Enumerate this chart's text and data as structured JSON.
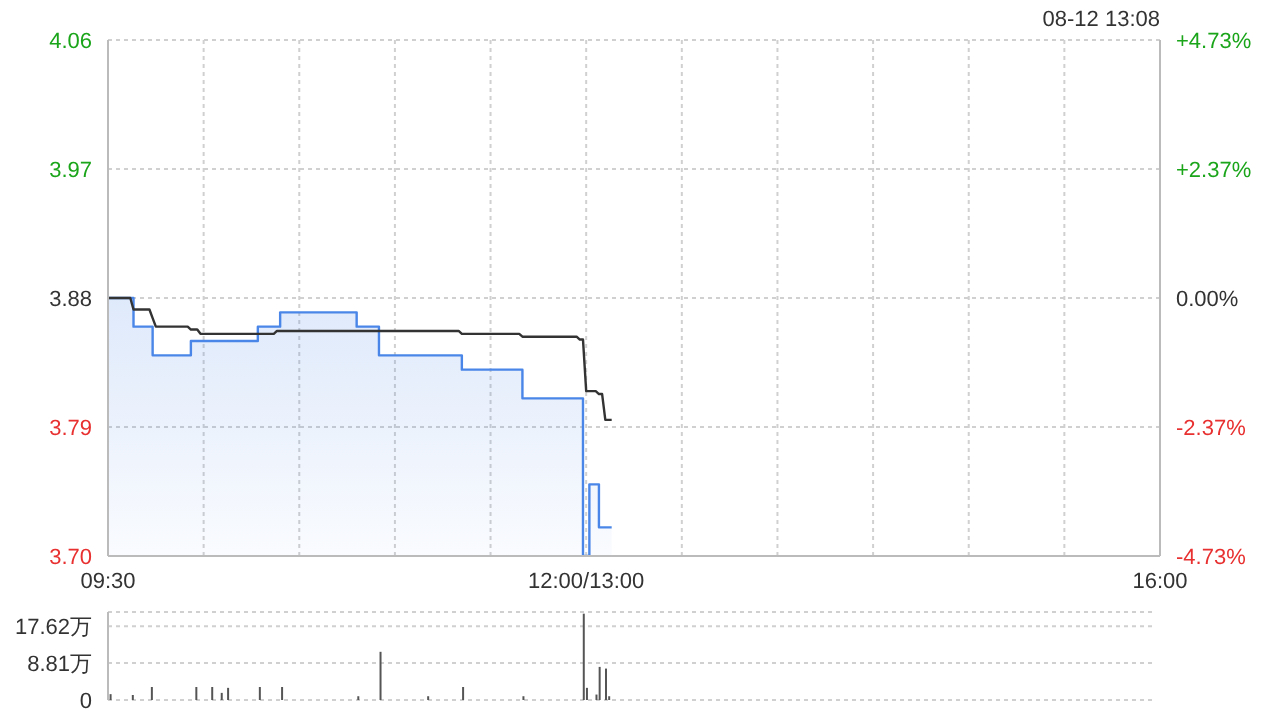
{
  "chart_data": [
    {
      "type": "line",
      "annotations": [
        "08-12 13:08"
      ],
      "categories": [
        "09:30",
        null,
        null,
        null,
        null,
        null,
        null,
        null,
        null,
        null,
        null,
        null,
        null,
        null,
        null,
        null,
        null,
        null,
        null,
        null,
        null,
        null,
        null,
        null,
        null,
        null,
        null,
        null,
        null,
        null,
        null,
        null,
        null,
        null,
        null,
        null,
        null,
        null,
        null,
        null,
        null,
        null,
        null,
        null,
        null,
        null,
        null,
        null,
        null,
        null,
        null,
        null,
        null,
        null,
        null,
        null,
        null,
        null,
        null,
        null,
        null,
        null,
        null,
        null,
        null,
        null,
        null,
        null,
        null,
        null,
        null,
        null,
        null,
        null,
        null,
        null,
        null,
        null,
        null,
        null,
        null,
        null,
        null,
        null,
        null,
        null,
        null,
        null,
        null,
        null,
        null,
        null,
        null,
        null,
        null,
        null,
        null,
        null,
        null,
        null,
        null,
        null,
        null,
        null,
        null,
        null,
        null,
        null,
        null,
        null,
        null,
        null,
        null,
        null,
        null,
        null,
        null,
        null,
        null,
        null,
        null,
        null,
        null,
        null,
        null,
        null,
        null,
        null,
        null,
        null,
        null,
        null,
        null,
        null,
        null,
        null,
        null,
        null,
        null,
        null,
        null,
        null,
        null,
        null,
        null,
        null,
        null,
        null,
        null,
        null,
        "12:00/13:00",
        null,
        null,
        null,
        null,
        null,
        null,
        null,
        null,
        null,
        null,
        null,
        null,
        null,
        null,
        null,
        null,
        null,
        null,
        null,
        null,
        null,
        null,
        null,
        null,
        null,
        null,
        null,
        null,
        null,
        null,
        null,
        null,
        null,
        null,
        null,
        null,
        null,
        null,
        null,
        null,
        null,
        null,
        null,
        null,
        null,
        null,
        null,
        null,
        null,
        null,
        null,
        null,
        null,
        null,
        null,
        null,
        null,
        null,
        null,
        null,
        null,
        null,
        null,
        null,
        null,
        null,
        null,
        null,
        null,
        null,
        null,
        null,
        null,
        null,
        null,
        null,
        null,
        null,
        null,
        null,
        null,
        null,
        null,
        null,
        null,
        null,
        null,
        null,
        null,
        null,
        null,
        null,
        null,
        null,
        null,
        null,
        null,
        null,
        null,
        null,
        null,
        null,
        null,
        null,
        null,
        null,
        null,
        null,
        null,
        null,
        null,
        null,
        null,
        null,
        null,
        null,
        null,
        null,
        null,
        null,
        null,
        null,
        null,
        null,
        null,
        null,
        null,
        null,
        null,
        null,
        null,
        null,
        null,
        null,
        null,
        null,
        null,
        null,
        null,
        null,
        null,
        null,
        null,
        null,
        null,
        null,
        null,
        null,
        null,
        null,
        null,
        null,
        null,
        null,
        null,
        null,
        null,
        null,
        null,
        null,
        null,
        null,
        null,
        null,
        null,
        null,
        null,
        null,
        null,
        null,
        null,
        null,
        null,
        null,
        null,
        null,
        null,
        null,
        null,
        "16:00"
      ],
      "ylim": [
        3.7,
        4.06
      ],
      "yticks": [
        {
          "value": 3.7,
          "label": "3.70"
        },
        3.79,
        3.88,
        3.97,
        4.06
      ],
      "y2lim": [
        -4.73,
        4.73
      ],
      "y2ticks": [
        {
          "value": -4.73,
          "label": "-4.73%"
        },
        {
          "value": -2.37,
          "label": "-2.37%"
        },
        {
          "value": 0,
          "label": "0.00%"
        },
        {
          "value": 2.37,
          "label": "+2.37%"
        },
        {
          "value": 4.73,
          "label": "+4.73%"
        }
      ],
      "grid": true,
      "legend": false,
      "marker": "none",
      "series": [
        {
          "type": "area",
          "color": "#4a86e8",
          "values": [
            3.88,
            3.88,
            3.88,
            3.88,
            3.88,
            3.88,
            3.88,
            3.88,
            3.86,
            3.86,
            3.86,
            3.86,
            3.86,
            3.86,
            3.84,
            3.84,
            3.84,
            3.84,
            3.84,
            3.84,
            3.84,
            3.84,
            3.84,
            3.84,
            3.84,
            3.84,
            3.85,
            3.85,
            3.85,
            3.85,
            3.85,
            3.85,
            3.85,
            3.85,
            3.85,
            3.85,
            3.85,
            3.85,
            3.85,
            3.85,
            3.85,
            3.85,
            3.85,
            3.85,
            3.85,
            3.85,
            3.85,
            3.86,
            3.86,
            3.86,
            3.86,
            3.86,
            3.86,
            3.86,
            3.87,
            3.87,
            3.87,
            3.87,
            3.87,
            3.87,
            3.87,
            3.87,
            3.87,
            3.87,
            3.87,
            3.87,
            3.87,
            3.87,
            3.87,
            3.87,
            3.87,
            3.87,
            3.87,
            3.87,
            3.87,
            3.87,
            3.87,
            3.87,
            3.86,
            3.86,
            3.86,
            3.86,
            3.86,
            3.86,
            3.86,
            3.84,
            3.84,
            3.84,
            3.84,
            3.84,
            3.84,
            3.84,
            3.84,
            3.84,
            3.84,
            3.84,
            3.84,
            3.84,
            3.84,
            3.84,
            3.84,
            3.84,
            3.84,
            3.84,
            3.84,
            3.84,
            3.84,
            3.84,
            3.84,
            3.84,
            3.84,
            3.83,
            3.83,
            3.83,
            3.83,
            3.83,
            3.83,
            3.83,
            3.83,
            3.83,
            3.83,
            3.83,
            3.83,
            3.83,
            3.83,
            3.83,
            3.83,
            3.83,
            3.83,
            3.83,
            3.81,
            3.81,
            3.81,
            3.81,
            3.81,
            3.81,
            3.81,
            3.81,
            3.81,
            3.81,
            3.81,
            3.81,
            3.81,
            3.81,
            3.81,
            3.81,
            3.81,
            3.81,
            3.81,
            3.7,
            3.7,
            3.75,
            3.75,
            3.75,
            3.72,
            3.72,
            3.72,
            3.72,
            3.72,
            null,
            null,
            null,
            null,
            null,
            null,
            null,
            null,
            null,
            null,
            null,
            null,
            null,
            null,
            null,
            null,
            null,
            null,
            null,
            null,
            null,
            null,
            null,
            null,
            null,
            null,
            null,
            null,
            null,
            null,
            null,
            null,
            null,
            null,
            null,
            null,
            null,
            null,
            null,
            null,
            null,
            null,
            null,
            null,
            null,
            null,
            null,
            null,
            null,
            null,
            null,
            null,
            null,
            null,
            null,
            null,
            null,
            null,
            null,
            null,
            null,
            null,
            null,
            null,
            null,
            null,
            null,
            null,
            null,
            null,
            null,
            null,
            null,
            null,
            null,
            null,
            null,
            null,
            null,
            null,
            null,
            null,
            null,
            null,
            null,
            null,
            null,
            null,
            null,
            null,
            null,
            null,
            null,
            null,
            null,
            null,
            null,
            null,
            null,
            null,
            null,
            null,
            null,
            null,
            null,
            null,
            null,
            null,
            null,
            null,
            null,
            null,
            null,
            null,
            null,
            null,
            null,
            null,
            null,
            null,
            null,
            null,
            null,
            null,
            null,
            null,
            null,
            null,
            null,
            null,
            null,
            null,
            null,
            null,
            null,
            null,
            null,
            null,
            null,
            null,
            null,
            null,
            null,
            null,
            null,
            null,
            null,
            null,
            null,
            null,
            null,
            null,
            null,
            null,
            null,
            null,
            null,
            null,
            null,
            null,
            null,
            null,
            null,
            null,
            null,
            null,
            null,
            null,
            null,
            null,
            null,
            null
          ]
        },
        {
          "color": "#333333",
          "values": [
            3.88,
            3.88,
            3.88,
            3.88,
            3.88,
            3.88,
            3.88,
            3.88,
            3.872,
            3.872,
            3.872,
            3.872,
            3.872,
            3.872,
            3.866,
            3.86,
            3.86,
            3.86,
            3.86,
            3.86,
            3.86,
            3.86,
            3.86,
            3.86,
            3.86,
            3.86,
            3.858,
            3.858,
            3.858,
            3.855,
            3.855,
            3.855,
            3.855,
            3.855,
            3.855,
            3.855,
            3.855,
            3.855,
            3.855,
            3.855,
            3.855,
            3.855,
            3.855,
            3.855,
            3.855,
            3.855,
            3.855,
            3.855,
            3.855,
            3.855,
            3.855,
            3.855,
            3.855,
            3.857,
            3.857,
            3.857,
            3.857,
            3.857,
            3.857,
            3.857,
            3.857,
            3.857,
            3.857,
            3.857,
            3.857,
            3.857,
            3.857,
            3.857,
            3.857,
            3.857,
            3.857,
            3.857,
            3.857,
            3.857,
            3.857,
            3.857,
            3.857,
            3.857,
            3.857,
            3.857,
            3.857,
            3.857,
            3.857,
            3.857,
            3.857,
            3.857,
            3.857,
            3.857,
            3.857,
            3.857,
            3.857,
            3.857,
            3.857,
            3.857,
            3.857,
            3.857,
            3.857,
            3.857,
            3.857,
            3.857,
            3.857,
            3.857,
            3.857,
            3.857,
            3.857,
            3.857,
            3.857,
            3.857,
            3.857,
            3.857,
            3.857,
            3.855,
            3.855,
            3.855,
            3.855,
            3.855,
            3.855,
            3.855,
            3.855,
            3.855,
            3.855,
            3.855,
            3.855,
            3.855,
            3.855,
            3.855,
            3.855,
            3.855,
            3.855,
            3.855,
            3.853,
            3.853,
            3.853,
            3.853,
            3.853,
            3.853,
            3.853,
            3.853,
            3.853,
            3.853,
            3.853,
            3.853,
            3.853,
            3.853,
            3.853,
            3.853,
            3.853,
            3.853,
            3.851,
            3.851,
            3.815,
            3.815,
            3.815,
            3.815,
            3.813,
            3.813,
            3.795,
            3.795,
            3.795,
            null,
            null,
            null,
            null,
            null,
            null,
            null,
            null,
            null,
            null,
            null,
            null,
            null,
            null,
            null,
            null,
            null,
            null,
            null,
            null,
            null,
            null,
            null,
            null,
            null,
            null,
            null,
            null,
            null,
            null,
            null,
            null,
            null,
            null,
            null,
            null,
            null,
            null,
            null,
            null,
            null,
            null,
            null,
            null,
            null,
            null,
            null,
            null,
            null,
            null,
            null,
            null,
            null,
            null,
            null,
            null,
            null,
            null,
            null,
            null,
            null,
            null,
            null,
            null,
            null,
            null,
            null,
            null,
            null,
            null,
            null,
            null,
            null,
            null,
            null,
            null,
            null,
            null,
            null,
            null,
            null,
            null,
            null,
            null,
            null,
            null,
            null,
            null,
            null,
            null,
            null,
            null,
            null,
            null,
            null,
            null,
            null,
            null,
            null,
            null,
            null,
            null,
            null,
            null,
            null,
            null,
            null,
            null,
            null,
            null,
            null,
            null,
            null,
            null,
            null,
            null,
            null,
            null,
            null,
            null,
            null,
            null,
            null,
            null,
            null,
            null,
            null,
            null,
            null,
            null,
            null,
            null,
            null,
            null,
            null,
            null,
            null,
            null,
            null,
            null,
            null,
            null,
            null,
            null,
            null,
            null,
            null,
            null,
            null,
            null,
            null,
            null,
            null,
            null,
            null,
            null,
            null,
            null,
            null,
            null,
            null,
            null,
            null,
            null,
            null,
            null,
            null,
            null,
            null,
            null,
            null,
            null
          ]
        }
      ]
    },
    {
      "type": "bar",
      "categories": [
        null,
        null,
        null,
        null,
        null,
        null,
        null,
        null,
        null,
        null,
        null,
        null,
        null,
        null,
        null,
        null,
        null,
        null,
        null,
        null,
        null,
        null,
        null,
        null,
        null,
        null,
        null,
        null,
        null,
        null,
        null,
        null,
        null,
        null,
        null,
        null,
        null,
        null,
        null,
        null,
        null,
        null,
        null,
        null,
        null,
        null,
        null,
        null,
        null,
        null,
        null,
        null,
        null,
        null,
        null,
        null,
        null,
        null,
        null,
        null,
        null,
        null,
        null,
        null,
        null,
        null,
        null,
        null,
        null,
        null,
        null,
        null,
        null,
        null,
        null,
        null,
        null,
        null,
        null,
        null,
        null,
        null,
        null,
        null,
        null,
        null,
        null,
        null,
        null,
        null,
        null,
        null,
        null,
        null,
        null,
        null,
        null,
        null,
        null,
        null,
        null,
        null,
        null,
        null,
        null,
        null,
        null,
        null,
        null,
        null,
        null,
        null,
        null,
        null,
        null,
        null,
        null,
        null,
        null,
        null,
        null,
        null,
        null,
        null,
        null,
        null,
        null,
        null,
        null,
        null,
        null,
        null,
        null,
        null,
        null,
        null,
        null,
        null,
        null,
        null,
        null,
        null,
        null,
        null,
        null,
        null,
        null,
        null,
        null,
        null,
        null,
        null,
        null,
        null,
        null,
        null,
        null,
        null,
        null,
        null,
        null,
        null,
        null,
        null,
        null,
        null,
        null,
        null,
        null,
        null,
        null,
        null,
        null,
        null,
        null,
        null,
        null,
        null,
        null,
        null,
        null,
        null,
        null,
        null,
        null,
        null,
        null,
        null,
        null,
        null,
        null,
        null,
        null,
        null,
        null,
        null,
        null,
        null,
        null,
        null,
        null,
        null,
        null,
        null,
        null,
        null,
        null,
        null,
        null,
        null,
        null,
        null,
        null,
        null,
        null,
        null,
        null,
        null,
        null,
        null,
        null,
        null,
        null,
        null,
        null,
        null,
        null,
        null,
        null,
        null,
        null,
        null,
        null,
        null,
        null,
        null,
        null,
        null,
        null,
        null,
        null,
        null,
        null,
        null,
        null,
        null,
        null,
        null,
        null,
        null,
        null,
        null,
        null,
        null,
        null,
        null,
        null,
        null,
        null,
        null,
        null,
        null,
        null,
        null,
        null,
        null,
        null,
        null,
        null,
        null,
        null,
        null,
        null,
        null,
        null,
        null,
        null,
        null,
        null,
        null,
        null,
        null,
        null,
        null,
        null,
        null,
        null,
        null,
        null,
        null,
        null,
        null,
        null,
        null,
        null,
        null,
        null,
        null,
        null,
        null,
        null,
        null,
        null,
        null,
        null,
        null,
        null,
        null,
        null,
        null,
        null,
        null,
        null,
        null,
        null,
        null,
        null,
        null,
        null,
        null,
        null,
        null,
        null,
        null,
        null,
        null,
        null,
        null,
        null,
        null,
        null
      ],
      "ylim": [
        0,
        21
      ],
      "yticks": [
        0,
        {
          "value": 8.81,
          "label": "8.81万"
        },
        {
          "value": 17.62,
          "label": "17.62万"
        }
      ],
      "grid": "y",
      "legend": false,
      "series": [
        {
          "color": "#555555",
          "values": [
            null,
            1.4,
            null,
            null,
            null,
            null,
            null,
            null,
            1.2,
            null,
            null,
            null,
            null,
            null,
            3.1,
            null,
            null,
            null,
            null,
            null,
            null,
            null,
            null,
            null,
            null,
            null,
            null,
            null,
            3.1,
            null,
            null,
            null,
            null,
            3.1,
            null,
            null,
            1.7,
            null,
            2.9,
            null,
            null,
            null,
            null,
            null,
            null,
            null,
            null,
            null,
            3.1,
            null,
            null,
            null,
            null,
            null,
            null,
            3.1,
            null,
            null,
            null,
            null,
            null,
            null,
            null,
            null,
            null,
            null,
            null,
            null,
            null,
            null,
            null,
            null,
            null,
            null,
            null,
            null,
            null,
            null,
            null,
            0.9,
            null,
            null,
            null,
            null,
            null,
            null,
            11.5,
            null,
            null,
            null,
            null,
            null,
            null,
            null,
            null,
            null,
            null,
            null,
            null,
            null,
            null,
            0.9,
            null,
            null,
            null,
            null,
            null,
            null,
            null,
            null,
            null,
            null,
            3.1,
            null,
            null,
            null,
            null,
            null,
            null,
            null,
            null,
            null,
            null,
            null,
            null,
            null,
            null,
            null,
            null,
            null,
            null,
            0.9,
            null,
            null,
            null,
            null,
            null,
            null,
            null,
            null,
            null,
            null,
            null,
            null,
            null,
            null,
            null,
            null,
            null,
            null,
            20.6,
            2.9,
            null,
            null,
            1.3,
            7.9,
            null,
            7.5,
            0.9,
            null,
            null,
            null,
            null,
            null,
            null,
            null,
            null,
            null,
            null,
            null,
            null,
            null,
            null,
            null,
            null,
            null,
            null,
            null,
            null,
            null,
            null,
            null,
            null,
            null,
            null,
            null,
            null,
            null,
            null,
            null,
            null,
            null,
            null,
            null,
            null,
            null,
            null,
            null,
            null,
            null,
            null,
            null,
            null,
            null,
            null,
            null,
            null,
            null,
            null,
            null,
            null,
            null,
            null,
            null,
            null,
            null,
            null,
            null,
            null,
            null,
            null,
            null,
            null,
            null,
            null,
            null,
            null,
            null,
            null,
            null,
            null,
            null,
            null,
            null,
            null,
            null,
            null,
            null,
            null,
            null,
            null,
            null,
            null,
            null,
            null,
            null,
            null,
            null,
            null,
            null,
            null,
            null,
            null,
            null,
            null,
            null,
            null,
            null,
            null,
            null,
            null,
            null,
            null,
            null,
            null,
            null,
            null,
            null,
            null,
            null,
            null,
            null,
            null,
            null,
            null,
            null,
            null,
            null,
            null,
            null,
            null,
            null,
            null,
            null,
            null,
            null,
            null,
            null,
            null,
            null,
            null,
            null,
            null,
            null,
            null,
            null,
            null,
            null,
            null,
            null,
            null,
            null,
            null,
            null,
            null,
            null,
            null,
            null,
            null,
            null,
            null,
            null,
            null,
            null,
            null,
            null,
            null,
            null,
            null,
            null,
            null,
            null,
            null,
            null,
            null,
            null,
            null,
            null,
            null,
            null,
            null
          ]
        }
      ]
    }
  ]
}
